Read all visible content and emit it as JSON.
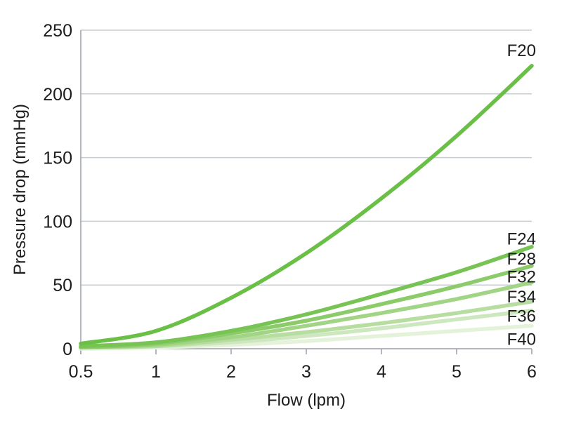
{
  "chart_data": {
    "type": "line",
    "title": "",
    "xlabel": "Flow (lpm)",
    "ylabel": "Pressure drop (mmHg)",
    "x_tick_labels": [
      "0.5",
      "1",
      "2",
      "3",
      "4",
      "5",
      "6"
    ],
    "y_tick_labels": [
      "0",
      "50",
      "100",
      "150",
      "200",
      "250"
    ],
    "ylim": [
      0,
      250
    ],
    "y_tick_values": [
      0,
      50,
      100,
      150,
      200,
      250
    ],
    "grid": "horizontal",
    "legend_position": "end-of-line-labels",
    "x": [
      0.5,
      1,
      2,
      3,
      4,
      5,
      6
    ],
    "series": [
      {
        "name": "F20",
        "color": "#6abf46",
        "values": [
          4,
          14,
          40,
          75,
          118,
          167,
          222
        ]
      },
      {
        "name": "F24",
        "color": "#77c455",
        "values": [
          2,
          5,
          14,
          27,
          43,
          60,
          80
        ]
      },
      {
        "name": "F28",
        "color": "#8bcb69",
        "values": [
          1,
          4,
          12,
          22,
          35,
          49,
          65
        ]
      },
      {
        "name": "F32",
        "color": "#a1d485",
        "values": [
          1,
          3,
          9,
          18,
          28,
          39,
          52
        ]
      },
      {
        "name": "F34",
        "color": "#b7dda1",
        "values": [
          1,
          2,
          7,
          13,
          20,
          28,
          37
        ]
      },
      {
        "name": "F36",
        "color": "#cde8bf",
        "values": [
          1,
          2,
          5,
          10,
          16,
          23,
          30
        ]
      },
      {
        "name": "F40",
        "color": "#e3f2d9",
        "values": [
          0,
          1,
          3,
          6,
          10,
          14,
          18
        ]
      }
    ],
    "colors": {
      "gridline": "#c8cdd1",
      "axis": "#9ba1a6",
      "text": "#1c1c1c"
    }
  }
}
